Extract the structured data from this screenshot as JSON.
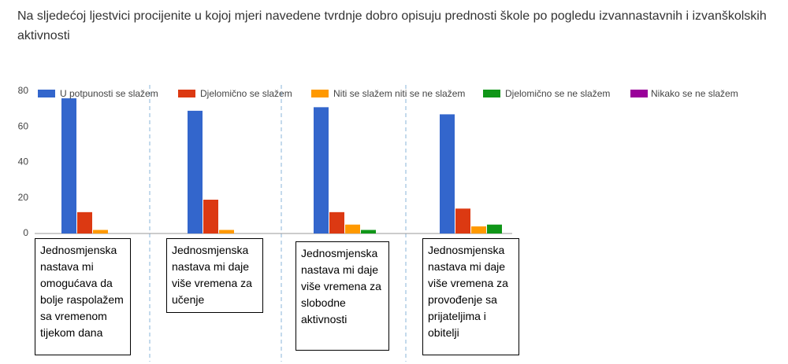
{
  "chart_data": {
    "type": "bar",
    "title": "Na sljedećoj ljestvici procijenite u kojoj mjeri navedene tvrdnje dobro opisuju prednosti škole po pogledu izvannastavnih i izvanškolskih aktivnosti",
    "categories": [
      "Jednosmjenska nastava mi omogućava da bolje raspolažem sa vremenom tijekom dana",
      "Jednosmjenska nastava mi daje više vremena za učenje",
      "Jednosmjenska nastava mi daje više vremena za slobodne aktivnosti",
      "Jednosmjenska nastava mi daje više vremena za provođenje sa prijateljima i obitelji"
    ],
    "series": [
      {
        "name": "U potpunosti se slažem",
        "color": "#3366cc",
        "values": [
          76,
          69,
          71,
          67
        ]
      },
      {
        "name": "Djelomično se slažem",
        "color": "#dc3912",
        "values": [
          12,
          19,
          12,
          14
        ]
      },
      {
        "name": "Niti se slažem niti se ne slažem",
        "color": "#ff9900",
        "values": [
          2,
          2,
          5,
          4
        ]
      },
      {
        "name": "Djelomično se ne slažem",
        "color": "#109618",
        "values": [
          0,
          0,
          2,
          5
        ]
      },
      {
        "name": "Nikako se ne slažem",
        "color": "#990099",
        "values": [
          0,
          0,
          0,
          0
        ]
      }
    ],
    "ylim": [
      0,
      80
    ],
    "yticks": [
      0,
      20,
      40,
      60,
      80
    ],
    "legend": "top"
  }
}
